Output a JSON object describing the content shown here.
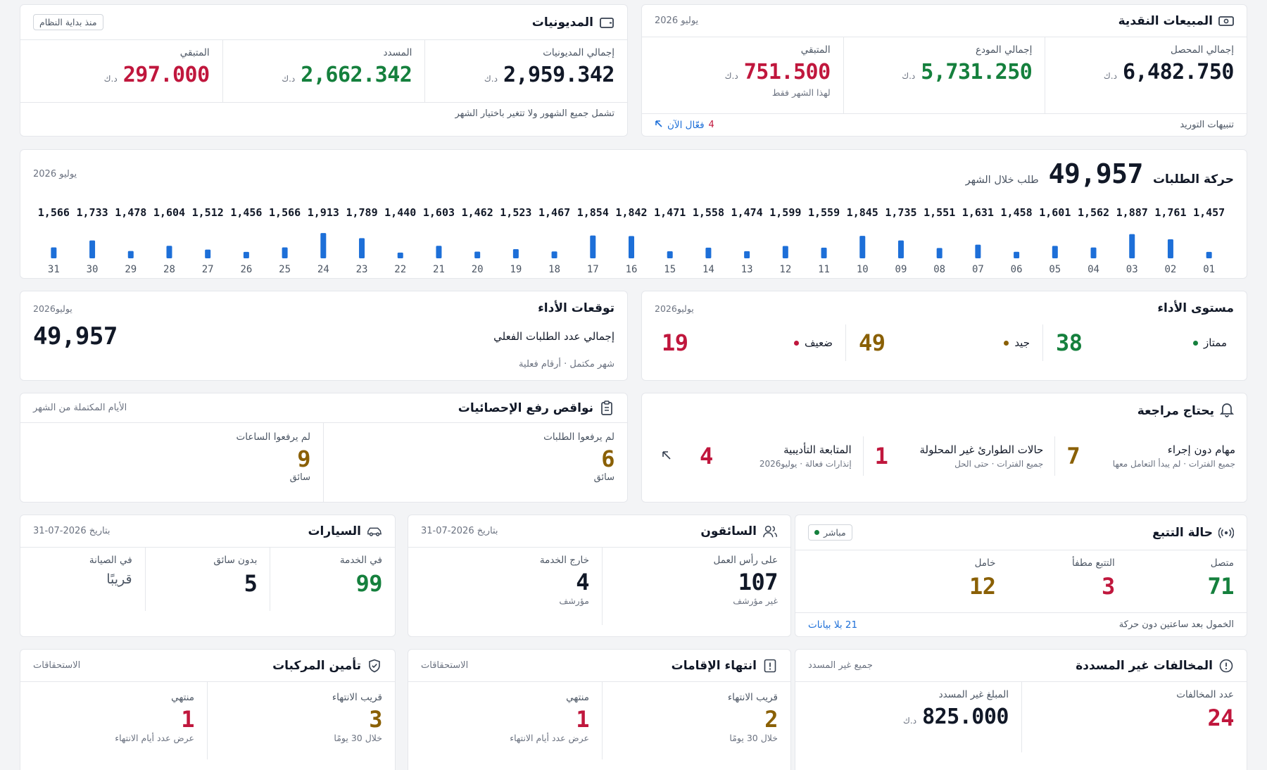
{
  "cash_sales": {
    "title": "المبيعات النقدية",
    "period": "يوليو 2026",
    "currency": "د.ك",
    "collected_label": "إجمالي المحصل",
    "collected_value": "6,482.750",
    "deposited_label": "إجمالي المودع",
    "deposited_value": "5,731.250",
    "remaining_label": "المتبقي",
    "remaining_value": "751.500",
    "remaining_note": "لهذا الشهر فقط",
    "alerts_label": "تنبيهات التوريد",
    "alerts_count": "4",
    "alerts_active": "فعّال الآن"
  },
  "debts": {
    "title": "المديونيات",
    "since_badge": "منذ بداية النظام",
    "currency": "د.ك",
    "total_label": "إجمالي المديونيات",
    "total_value": "2,959.342",
    "paid_label": "المسدد",
    "paid_value": "2,662.342",
    "remaining_label": "المتبقي",
    "remaining_value": "297.000",
    "note": "تشمل جميع الشهور ولا تتغير باختيار الشهر"
  },
  "orders": {
    "title": "حركة الطلبات",
    "total": "49,957",
    "subtitle": "طلب خلال الشهر",
    "period": "يوليو 2026"
  },
  "chart_data": {
    "type": "bar",
    "title": "حركة الطلبات",
    "categories": [
      "01",
      "02",
      "03",
      "04",
      "05",
      "06",
      "07",
      "08",
      "09",
      "10",
      "11",
      "12",
      "13",
      "14",
      "15",
      "16",
      "17",
      "18",
      "19",
      "20",
      "21",
      "22",
      "23",
      "24",
      "25",
      "26",
      "27",
      "28",
      "29",
      "30",
      "31"
    ],
    "values": [
      1457,
      1761,
      1887,
      1562,
      1601,
      1458,
      1631,
      1551,
      1735,
      1845,
      1559,
      1599,
      1474,
      1558,
      1471,
      1842,
      1854,
      1467,
      1523,
      1462,
      1603,
      1440,
      1789,
      1913,
      1566,
      1456,
      1512,
      1604,
      1478,
      1733,
      1566
    ],
    "value_labels": [
      "1,457",
      "1,761",
      "1,887",
      "1,562",
      "1,601",
      "1,458",
      "1,631",
      "1,551",
      "1,735",
      "1,845",
      "1,559",
      "1,599",
      "1,474",
      "1,558",
      "1,471",
      "1,842",
      "1,854",
      "1,467",
      "1,523",
      "1,462",
      "1,603",
      "1,440",
      "1,789",
      "1,913",
      "1,566",
      "1,456",
      "1,512",
      "1,604",
      "1,478",
      "1,733",
      "1,566"
    ],
    "bar_color": "#1d6fd8",
    "grid": false,
    "x_direction": "right-to-left"
  },
  "performance_level": {
    "title": "مستوى الأداء",
    "period": "يوليو2026",
    "excellent_label": "ممتاز",
    "excellent_value": "38",
    "good_label": "جيد",
    "good_value": "49",
    "weak_label": "ضعيف",
    "weak_value": "19"
  },
  "performance_forecast": {
    "title": "توقعات الأداء",
    "period": "يوليو2026",
    "label": "إجمالي عدد الطلبات الفعلي",
    "value": "49,957",
    "note": "شهر مكتمل · أرقام فعلية"
  },
  "review": {
    "title": "يحتاج مراجعة",
    "tasks_label": "مهام دون إجراء",
    "tasks_sub": "جميع الفترات · لم يبدأ التعامل معها",
    "tasks_value": "7",
    "emergency_label": "حالات الطوارئ غير المحلولة",
    "emergency_sub": "جميع الفترات · حتى الحل",
    "emergency_value": "1",
    "disciplinary_label": "المتابعة التأديبية",
    "disciplinary_sub": "إنذارات فعالة · يوليو2026",
    "disciplinary_value": "4"
  },
  "stats_missing": {
    "title": "نواقص رفع الإحصائيات",
    "note": "الأيام المكتملة من الشهر",
    "orders_label": "لم يرفعوا الطلبات",
    "orders_value": "6",
    "orders_unit": "سائق",
    "hours_label": "لم يرفعوا الساعات",
    "hours_value": "9",
    "hours_unit": "سائق"
  },
  "tracking": {
    "title": "حالة التتبع",
    "live_label": "مباشر",
    "connected_label": "متصل",
    "connected_value": "71",
    "off_label": "التتبع مطفأ",
    "off_value": "3",
    "idle_label": "خامل",
    "idle_value": "12",
    "idle_note": "الخمول بعد ساعتين دون حركة",
    "no_data": "21 بلا بيانات"
  },
  "drivers": {
    "title": "السائقون",
    "date": "بتاريخ 2026-07-31",
    "on_duty_label": "على رأس العمل",
    "on_duty_value": "107",
    "on_duty_sub": "غير مؤرشف",
    "off_duty_label": "خارج الخدمة",
    "off_duty_value": "4",
    "off_duty_sub": "مؤرشف"
  },
  "cars": {
    "title": "السيارات",
    "date": "بتاريخ 2026-07-31",
    "in_service_label": "في الخدمة",
    "in_service_value": "99",
    "no_driver_label": "بدون سائق",
    "no_driver_value": "5",
    "maintenance_label": "في الصيانة",
    "maintenance_value": "قريبًا"
  },
  "violations": {
    "title": "المخالفات غير المسددة",
    "scope": "جميع غير المسدد",
    "count_label": "عدد المخالفات",
    "count_value": "24",
    "amount_label": "المبلغ غير المسدد",
    "amount_value": "825.000",
    "currency": "د.ك"
  },
  "residency": {
    "title": "انتهاء الإقامات",
    "scope": "الاستحقاقات",
    "near_label": "قريب الانتهاء",
    "near_value": "2",
    "near_sub": "خلال 30 يومًا",
    "expired_label": "منتهي",
    "expired_value": "1",
    "expired_sub": "عرض عدد أيام الانتهاء"
  },
  "insurance": {
    "title": "تأمين المركبات",
    "scope": "الاستحقاقات",
    "near_label": "قريب الانتهاء",
    "near_value": "3",
    "near_sub": "خلال 30 يومًا",
    "expired_label": "منتهي",
    "expired_value": "1",
    "expired_sub": "عرض عدد أيام الانتهاء"
  },
  "colors": {
    "green": "#15803d",
    "red": "#c0173d",
    "amber": "#8a6005",
    "blue": "#1d6fd8"
  }
}
